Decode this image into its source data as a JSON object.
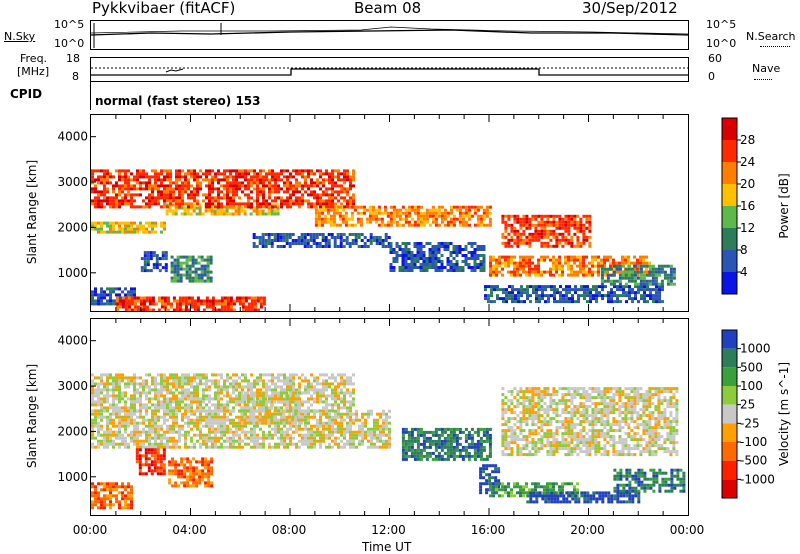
{
  "header": {
    "station": "Pykkvibaer (fitACF)",
    "beam": "Beam 08",
    "date": "30/Sep/2012"
  },
  "noise_panel": {
    "left_label": "N.Sky",
    "right_label": "N.Search",
    "tick_top": "10^5",
    "tick_bottom": "10^0"
  },
  "freq_panel": {
    "left_label_line1": "Freq.",
    "left_label_line2": "[MHz]",
    "left_ticks": [
      "18",
      "8"
    ],
    "right_label": "Nave",
    "right_ticks": [
      "60",
      "0"
    ]
  },
  "cpid": {
    "label": "CPID",
    "value": "normal (fast stereo) 153"
  },
  "time_axis": {
    "label": "Time UT",
    "ticks": [
      "00:00",
      "04:00",
      "08:00",
      "12:00",
      "16:00",
      "20:00",
      "00:00"
    ]
  },
  "chart_data": [
    {
      "type": "heatmap",
      "quantity": "Power",
      "xlabel": "Time UT",
      "ylabel": "Slant Range [km]",
      "xlim": [
        0,
        24
      ],
      "ylim": [
        180,
        4500
      ],
      "yticks": [
        1000,
        2000,
        3000,
        4000
      ],
      "colorbar": {
        "label": "Power [dB]",
        "tick_labels": [
          "28",
          "24",
          "20",
          "16",
          "12",
          "8",
          "4"
        ],
        "colors": [
          "#d80000",
          "#ff2a00",
          "#ff7e00",
          "#ffc000",
          "#5eb84a",
          "#2e7d5a",
          "#2a55b4",
          "#0a14e6"
        ]
      },
      "echo_bands": [
        {
          "t0": 0.0,
          "t1": 3.0,
          "r0": 1950,
          "r1": 2150,
          "level": 3
        },
        {
          "t0": 3.0,
          "t1": 7.5,
          "r0": 2300,
          "r1": 2550,
          "level": 3
        },
        {
          "t0": 6.5,
          "t1": 12.0,
          "r0": 1600,
          "r1": 1900,
          "level": 6
        },
        {
          "t0": 12.0,
          "t1": 15.8,
          "r0": 1050,
          "r1": 1700,
          "level": 6
        },
        {
          "t0": 9.0,
          "t1": 16.0,
          "r0": 2100,
          "r1": 2500,
          "level": 2
        },
        {
          "t0": 2.0,
          "t1": 3.0,
          "r0": 1050,
          "r1": 1500,
          "level": 6
        },
        {
          "t0": 3.2,
          "t1": 4.8,
          "r0": 850,
          "r1": 1400,
          "level": 5
        },
        {
          "t0": 0.0,
          "t1": 1.7,
          "r0": 350,
          "r1": 700,
          "level": 6
        },
        {
          "t0": 1.0,
          "t1": 7.0,
          "r0": 180,
          "r1": 500,
          "level": 1
        },
        {
          "t0": 15.8,
          "t1": 23.0,
          "r0": 400,
          "r1": 750,
          "level": 6
        },
        {
          "t0": 16.0,
          "t1": 22.5,
          "r0": 1000,
          "r1": 1400,
          "level": 2
        },
        {
          "t0": 20.5,
          "t1": 23.5,
          "r0": 800,
          "r1": 1200,
          "level": 5
        },
        {
          "t0": 16.5,
          "t1": 20.0,
          "r0": 1600,
          "r1": 2300,
          "level": 1
        },
        {
          "t0": 0.0,
          "t1": 10.5,
          "r0": 2500,
          "r1": 3300,
          "level": 1
        }
      ]
    },
    {
      "type": "heatmap",
      "quantity": "Velocity",
      "xlabel": "Time UT",
      "ylabel": "Slant Range [km]",
      "xlim": [
        0,
        24
      ],
      "ylim": [
        180,
        4500
      ],
      "yticks": [
        1000,
        2000,
        3000,
        4000
      ],
      "colorbar": {
        "label": "Velocity [m s^-1]",
        "tick_labels": [
          "1000",
          "500",
          "100",
          "25",
          "-25",
          "-100",
          "-500",
          "-1000"
        ],
        "colors": [
          "#2040c0",
          "#2e7d5a",
          "#3aa03a",
          "#8ccc3c",
          "#c8c8c8",
          "#ffa000",
          "#ff6a00",
          "#ff2000",
          "#dd0000"
        ]
      },
      "echo_bands": [
        {
          "t0": 0.0,
          "t1": 12.0,
          "r0": 1700,
          "r1": 2500,
          "level": 4
        },
        {
          "t0": 6.0,
          "t1": 8.5,
          "r0": 2200,
          "r1": 2900,
          "level": 4
        },
        {
          "t0": 0.0,
          "t1": 10.5,
          "r0": 2500,
          "r1": 3300,
          "level": 4
        },
        {
          "t0": 12.5,
          "t1": 16.0,
          "r0": 1400,
          "r1": 2100,
          "level": 1
        },
        {
          "t0": 1.8,
          "t1": 3.0,
          "r0": 1100,
          "r1": 1650,
          "level": 7
        },
        {
          "t0": 3.1,
          "t1": 4.8,
          "r0": 850,
          "r1": 1450,
          "level": 6
        },
        {
          "t0": 0.0,
          "t1": 1.6,
          "r0": 350,
          "r1": 900,
          "level": 6
        },
        {
          "t0": 15.6,
          "t1": 16.4,
          "r0": 700,
          "r1": 1300,
          "level": 0
        },
        {
          "t0": 16.0,
          "t1": 19.5,
          "r0": 600,
          "r1": 900,
          "level": 2
        },
        {
          "t0": 17.5,
          "t1": 22.0,
          "r0": 450,
          "r1": 700,
          "level": 0
        },
        {
          "t0": 16.5,
          "t1": 23.5,
          "r0": 1500,
          "r1": 3000,
          "level": 4
        },
        {
          "t0": 21.0,
          "t1": 23.8,
          "r0": 700,
          "r1": 1200,
          "level": 1
        }
      ]
    }
  ]
}
